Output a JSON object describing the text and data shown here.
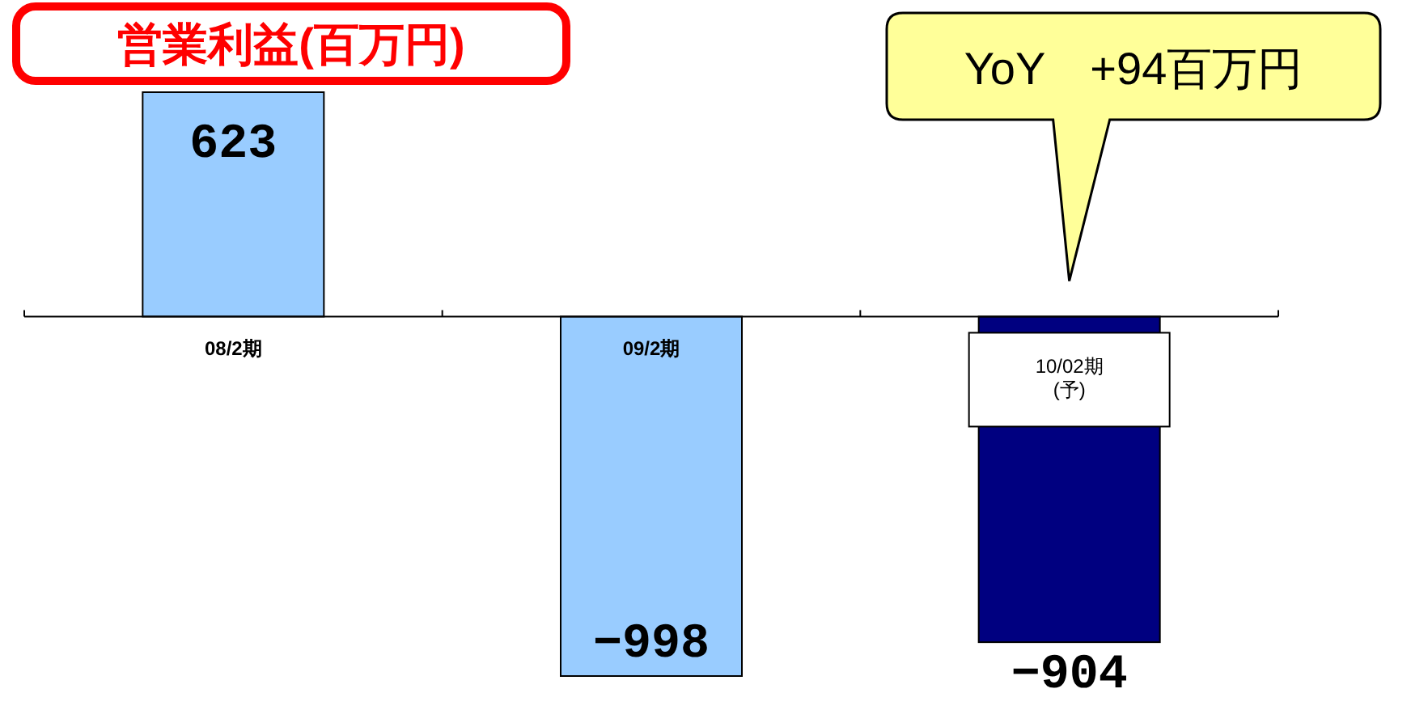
{
  "chart_data": {
    "type": "bar",
    "title": "営業利益(百万円)",
    "categories": [
      "08/2期",
      "09/2期",
      "10/02期\n(予)"
    ],
    "values": [
      623,
      -998,
      -904
    ],
    "colors": [
      "#99ccff",
      "#99ccff",
      "#000080"
    ],
    "data_labels": true,
    "annotations": [
      "YoY　+94百万円"
    ]
  }
}
